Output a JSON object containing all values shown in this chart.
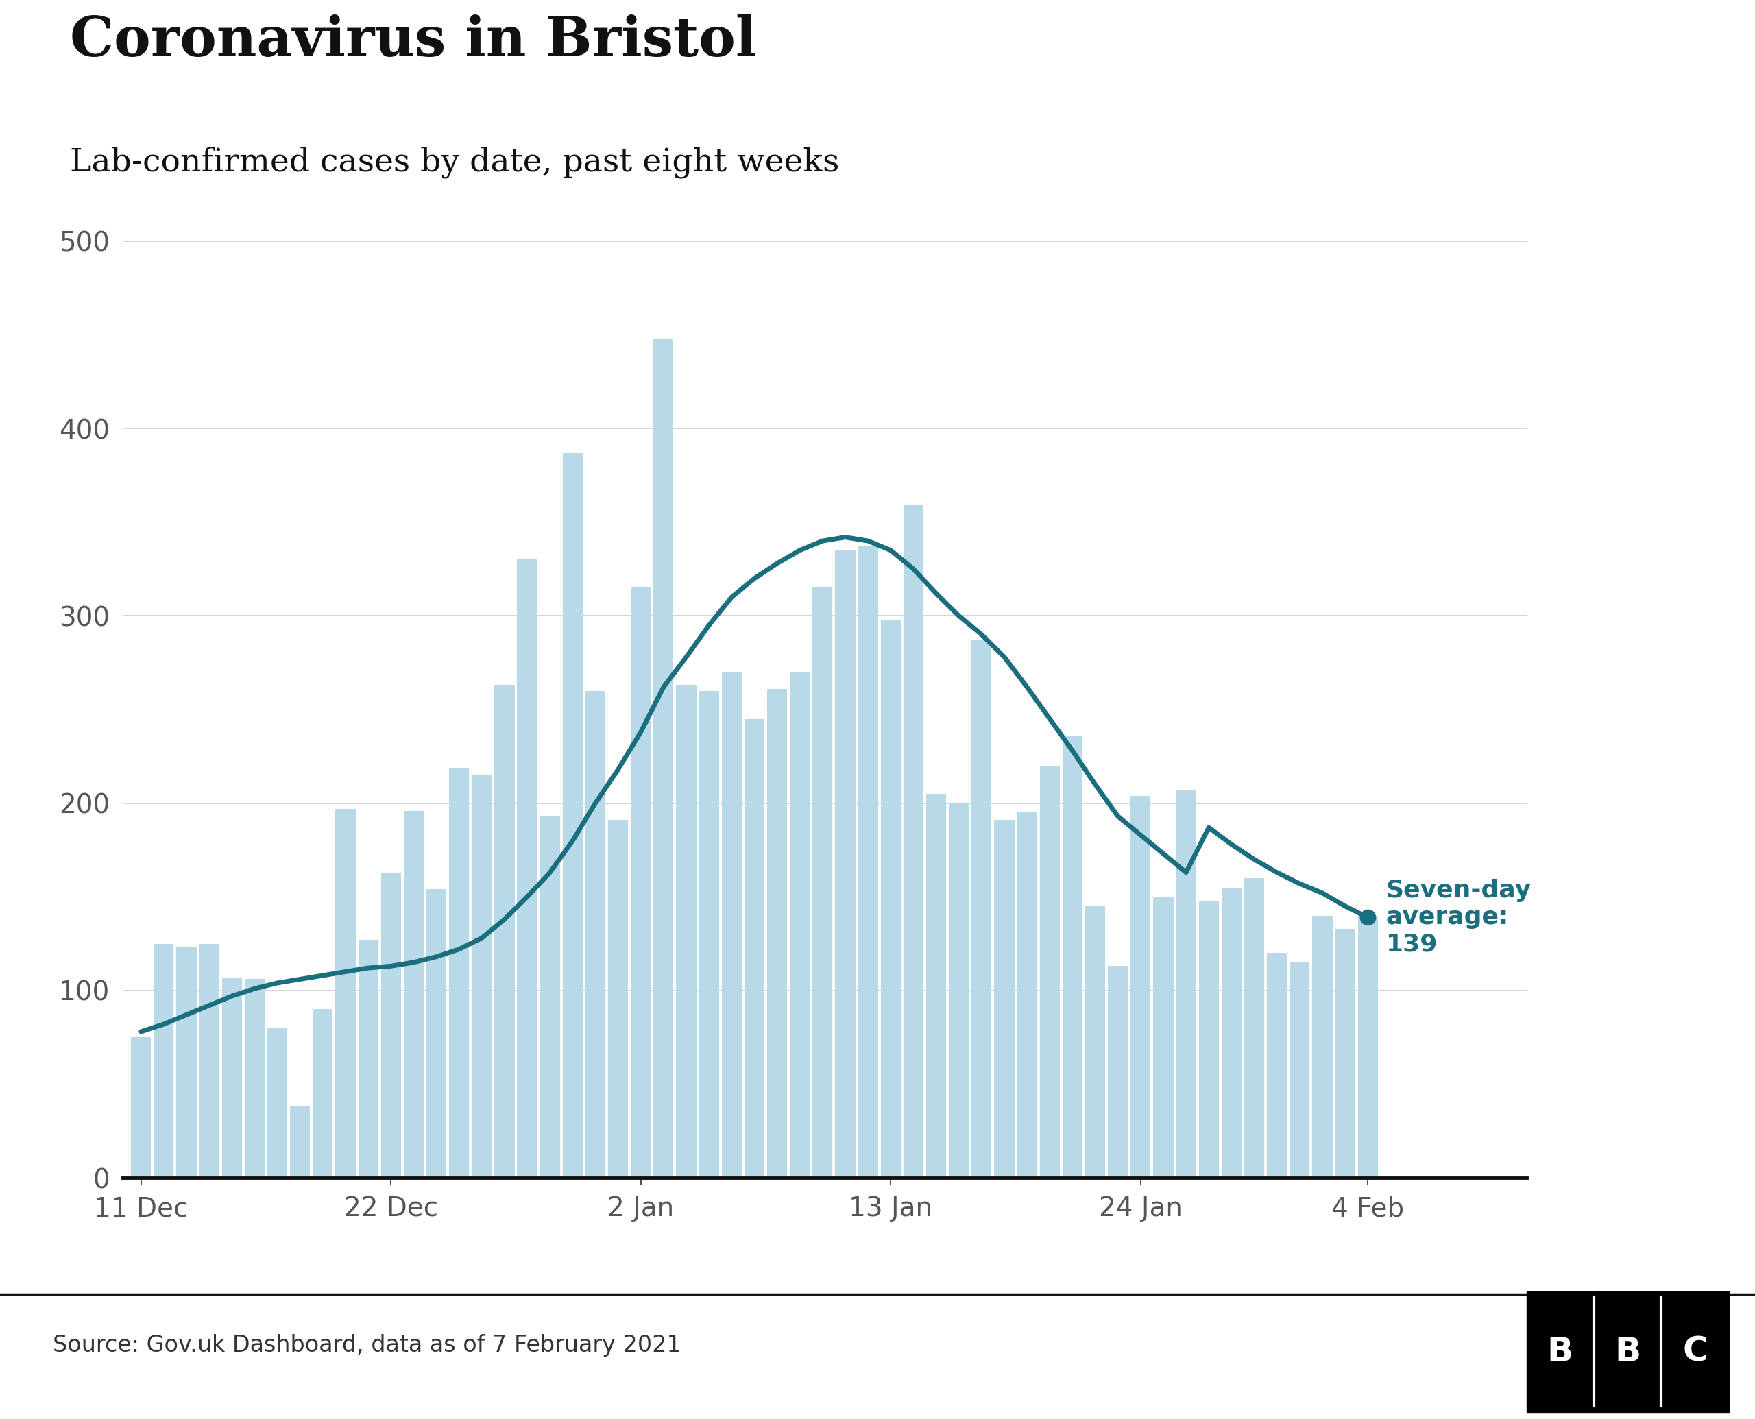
{
  "title": "Coronavirus in Bristol",
  "subtitle": "Lab-confirmed cases by date, past eight weeks",
  "source": "Source: Gov.uk Dashboard, data as of 7 February 2021",
  "bar_color": "#b8d9e8",
  "line_color": "#1a6e7e",
  "annotation_color": "#1a6e7e",
  "background_color": "#ffffff",
  "ylim": [
    0,
    500
  ],
  "yticks": [
    0,
    100,
    200,
    300,
    400,
    500
  ],
  "xtick_labels": [
    "11 Dec",
    "22 Dec",
    "2 Jan",
    "13 Jan",
    "24 Jan",
    "4 Feb"
  ],
  "final_avg": 139,
  "bar_values": [
    75,
    125,
    123,
    125,
    107,
    106,
    80,
    38,
    90,
    197,
    127,
    163,
    196,
    154,
    219,
    215,
    263,
    330,
    193,
    387,
    260,
    191,
    315,
    448,
    263,
    260,
    270,
    245,
    261,
    270,
    315,
    335,
    337,
    298,
    359,
    205,
    200,
    287,
    191,
    195,
    220,
    236,
    145,
    113,
    204,
    150,
    207,
    148,
    155,
    160,
    120,
    115,
    140,
    133,
    140
  ],
  "avg_values": [
    78,
    82,
    87,
    92,
    97,
    101,
    104,
    106,
    108,
    110,
    112,
    113,
    115,
    118,
    122,
    128,
    138,
    150,
    163,
    180,
    200,
    218,
    238,
    262,
    278,
    295,
    310,
    320,
    328,
    335,
    340,
    342,
    340,
    335,
    325,
    312,
    300,
    290,
    278,
    262,
    245,
    228,
    210,
    193,
    183,
    173,
    163,
    187,
    178,
    170,
    163,
    157,
    152,
    145,
    139
  ]
}
